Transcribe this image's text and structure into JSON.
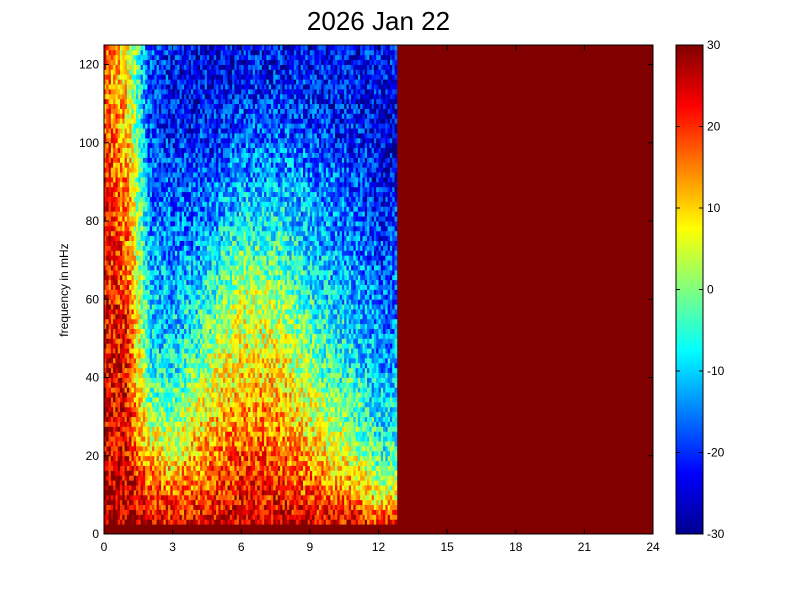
{
  "chart_data": {
    "type": "heatmap",
    "title": "2026 Jan 22",
    "xlabel": "",
    "ylabel": "frequency in mHz",
    "xlim": [
      0,
      24
    ],
    "ylim": [
      0,
      125
    ],
    "xticks": [
      "0",
      "3",
      "6",
      "9",
      "12",
      "15",
      "18",
      "21",
      "24"
    ],
    "yticks": [
      "0",
      "20",
      "40",
      "60",
      "80",
      "100",
      "120"
    ],
    "colorbar": {
      "range": [
        -30,
        30
      ],
      "ticks": [
        "-30",
        "-20",
        "-10",
        "0",
        "10",
        "20",
        "30"
      ],
      "colormap": "jet"
    },
    "data_end_hour": 12.8,
    "fill_value_after_data_end": 30,
    "data_coverage_note": "Spectrogram populated from 0 to ~12.8 h; saturated at max value (30) afterwards",
    "time_bins_h": [
      0,
      1,
      2,
      3,
      4,
      5,
      6,
      7,
      8,
      9,
      10,
      11,
      12
    ],
    "freq_bins_mhz": [
      0,
      10,
      20,
      30,
      40,
      50,
      60,
      70,
      80,
      90,
      100,
      110,
      120
    ],
    "values": [
      [
        30,
        28,
        26,
        26,
        27,
        28,
        28,
        28,
        28,
        28,
        28,
        27,
        26
      ],
      [
        27,
        26,
        20,
        16,
        18,
        20,
        22,
        22,
        21,
        18,
        16,
        14,
        6
      ],
      [
        26,
        24,
        10,
        6,
        12,
        16,
        18,
        18,
        16,
        12,
        8,
        4,
        -4
      ],
      [
        25,
        23,
        2,
        0,
        6,
        10,
        14,
        14,
        12,
        6,
        2,
        -2,
        -8
      ],
      [
        24,
        22,
        -4,
        -6,
        0,
        6,
        10,
        10,
        8,
        2,
        -4,
        -6,
        -12
      ],
      [
        24,
        21,
        -8,
        -10,
        -6,
        2,
        6,
        6,
        4,
        -2,
        -6,
        -10,
        -14
      ],
      [
        23,
        20,
        -10,
        -12,
        -8,
        -2,
        4,
        4,
        0,
        -6,
        -10,
        -12,
        -16
      ],
      [
        22,
        18,
        -12,
        -14,
        -12,
        -6,
        0,
        -2,
        -4,
        -10,
        -12,
        -14,
        -18
      ],
      [
        21,
        16,
        -14,
        -16,
        -16,
        -12,
        -8,
        -8,
        -8,
        -12,
        -14,
        -16,
        -20
      ],
      [
        20,
        14,
        -16,
        -18,
        -18,
        -16,
        -12,
        -12,
        -12,
        -14,
        -16,
        -18,
        -22
      ],
      [
        19,
        12,
        -18,
        -20,
        -20,
        -20,
        -16,
        -16,
        -16,
        -18,
        -20,
        -20,
        -24
      ],
      [
        18,
        10,
        -18,
        -22,
        -22,
        -22,
        -20,
        -20,
        -20,
        -20,
        -22,
        -22,
        -24
      ],
      [
        18,
        8,
        -18,
        -22,
        -24,
        -24,
        -22,
        -22,
        -22,
        -22,
        -22,
        -22,
        -22
      ]
    ]
  }
}
